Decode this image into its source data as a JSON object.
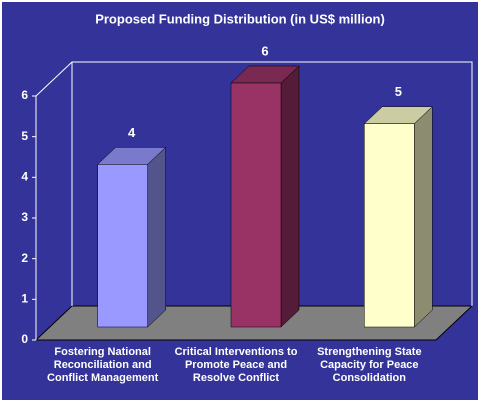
{
  "chart_data": {
    "type": "bar3d",
    "title": "Proposed Funding Distribution (in US$ million)",
    "categories": [
      "Fostering National Reconciliation and Conflict Management",
      "Critical Interventions to Promote Peace and Resolve Conflict",
      "Strengthening State Capacity for Peace Consolidation"
    ],
    "values": [
      4,
      6,
      5
    ],
    "colors": [
      "#9999ff",
      "#993366",
      "#ffffcc"
    ],
    "ylim": [
      0,
      6
    ],
    "yticks": [
      0,
      1,
      2,
      3,
      4,
      5,
      6
    ]
  }
}
